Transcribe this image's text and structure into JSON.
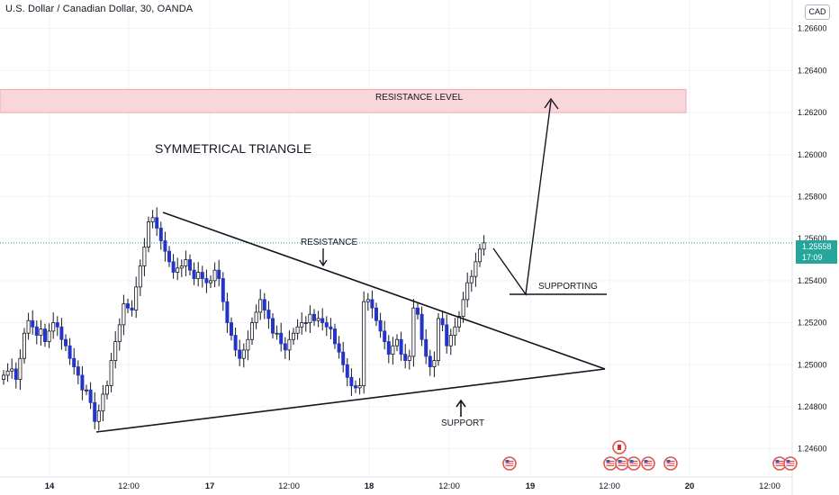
{
  "header": {
    "title": "U.S. Dollar / Canadian Dollar, 30, OANDA"
  },
  "currency_button": "CAD",
  "last_price": {
    "value": "1.25558",
    "countdown": "17:09",
    "color": "#26a69a"
  },
  "annotations": {
    "pattern_title": "SYMMETRICAL TRIANGLE",
    "resistance_level": "RESISTANCE LEVEL",
    "resistance": "RESISTANCE",
    "support": "SUPPORT",
    "supporting": "SUPPORTING"
  },
  "colors": {
    "bear": "#2434c8",
    "bull": "#ffffff",
    "wick": "#131722",
    "zone": "#f9d6d9",
    "zone_border": "#f0a9b0"
  },
  "event_icons": [
    "us-flag-icon",
    "us-flag-icon",
    "us-flag-icon",
    "us-flag-icon",
    "us-flag-icon",
    "us-flag-icon",
    "canada-flag-icon",
    "us-flag-icon",
    "us-flag-icon"
  ],
  "chart_data": {
    "type": "candlestick",
    "title": "U.S. Dollar / Canadian Dollar, 30, OANDA",
    "x_ticks": [
      "14",
      "12:00",
      "17",
      "12:00",
      "18",
      "12:00",
      "19",
      "12:00",
      "20",
      "12:00"
    ],
    "y_ticks": [
      "1.26600",
      "1.26400",
      "1.26200",
      "1.26000",
      "1.25800",
      "1.25600",
      "1.25400",
      "1.25200",
      "1.25000",
      "1.24800",
      "1.24600"
    ],
    "ylim": [
      1.2455,
      1.2675
    ],
    "grid": true,
    "resistance_zone": [
      1.262,
      1.2631
    ],
    "close_series": [
      1.2495,
      1.2497,
      1.2498,
      1.2493,
      1.2503,
      1.2515,
      1.2521,
      1.2518,
      1.2514,
      1.2517,
      1.2511,
      1.2516,
      1.252,
      1.2518,
      1.2512,
      1.2509,
      1.2503,
      1.2499,
      1.2495,
      1.2488,
      1.2488,
      1.2482,
      1.2473,
      1.2478,
      1.2486,
      1.249,
      1.2502,
      1.2511,
      1.2519,
      1.2529,
      1.2527,
      1.2526,
      1.2537,
      1.2547,
      1.2556,
      1.2568,
      1.257,
      1.2565,
      1.2559,
      1.2554,
      1.2549,
      1.2544,
      1.2546,
      1.2547,
      1.255,
      1.2545,
      1.2541,
      1.2544,
      1.2541,
      1.2539,
      1.254,
      1.2545,
      1.2541,
      1.253,
      1.252,
      1.2514,
      1.2507,
      1.2503,
      1.2507,
      1.2512,
      1.252,
      1.2525,
      1.2531,
      1.2526,
      1.2522,
      1.2515,
      1.2515,
      1.251,
      1.2507,
      1.2512,
      1.2515,
      1.2518,
      1.252,
      1.252,
      1.2524,
      1.2521,
      1.2522,
      1.252,
      1.2518,
      1.2517,
      1.251,
      1.2506,
      1.25,
      1.2494,
      1.249,
      1.2489,
      1.249,
      1.253,
      1.2531,
      1.2527,
      1.2521,
      1.2516,
      1.2511,
      1.2505,
      1.2509,
      1.2512,
      1.2505,
      1.2502,
      1.2504,
      1.2527,
      1.2524,
      1.2512,
      1.2504,
      1.2499,
      1.2502,
      1.2522,
      1.2519,
      1.2509,
      1.2514,
      1.2518,
      1.2523,
      1.2531,
      1.2539,
      1.2542,
      1.2549,
      1.2555,
      1.2558
    ]
  }
}
